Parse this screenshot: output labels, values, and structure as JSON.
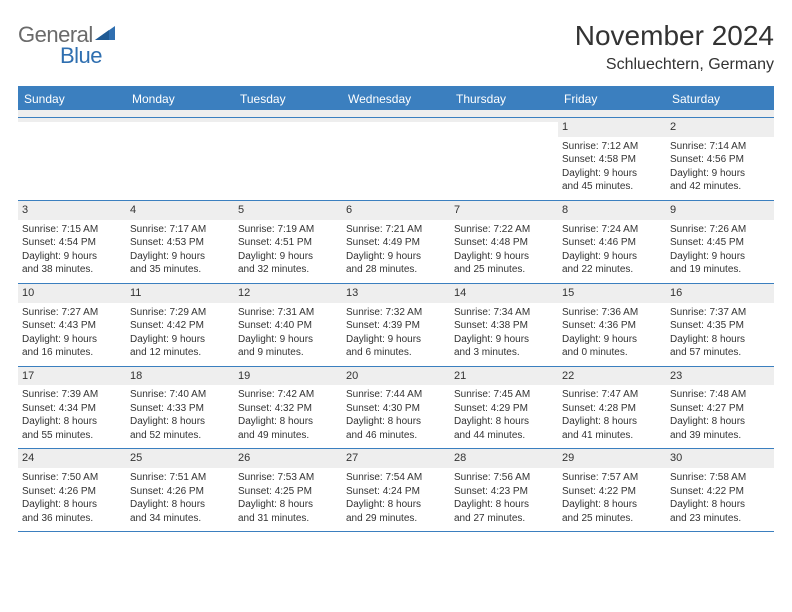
{
  "logo": {
    "general": "General",
    "blue": "Blue"
  },
  "title": "November 2024",
  "location": "Schluechtern, Germany",
  "colors": {
    "header_bar": "#3b7fbf",
    "daynum_bg": "#eeeeee",
    "text": "#333333",
    "logo_gray": "#6a6a6a",
    "logo_blue": "#2f6fb0"
  },
  "dayNames": [
    "Sunday",
    "Monday",
    "Tuesday",
    "Wednesday",
    "Thursday",
    "Friday",
    "Saturday"
  ],
  "weeks": [
    [
      {
        "n": "",
        "sunrise": "",
        "sunset": "",
        "day1": "",
        "day2": ""
      },
      {
        "n": "",
        "sunrise": "",
        "sunset": "",
        "day1": "",
        "day2": ""
      },
      {
        "n": "",
        "sunrise": "",
        "sunset": "",
        "day1": "",
        "day2": ""
      },
      {
        "n": "",
        "sunrise": "",
        "sunset": "",
        "day1": "",
        "day2": ""
      },
      {
        "n": "",
        "sunrise": "",
        "sunset": "",
        "day1": "",
        "day2": ""
      },
      {
        "n": "1",
        "sunrise": "Sunrise: 7:12 AM",
        "sunset": "Sunset: 4:58 PM",
        "day1": "Daylight: 9 hours",
        "day2": "and 45 minutes."
      },
      {
        "n": "2",
        "sunrise": "Sunrise: 7:14 AM",
        "sunset": "Sunset: 4:56 PM",
        "day1": "Daylight: 9 hours",
        "day2": "and 42 minutes."
      }
    ],
    [
      {
        "n": "3",
        "sunrise": "Sunrise: 7:15 AM",
        "sunset": "Sunset: 4:54 PM",
        "day1": "Daylight: 9 hours",
        "day2": "and 38 minutes."
      },
      {
        "n": "4",
        "sunrise": "Sunrise: 7:17 AM",
        "sunset": "Sunset: 4:53 PM",
        "day1": "Daylight: 9 hours",
        "day2": "and 35 minutes."
      },
      {
        "n": "5",
        "sunrise": "Sunrise: 7:19 AM",
        "sunset": "Sunset: 4:51 PM",
        "day1": "Daylight: 9 hours",
        "day2": "and 32 minutes."
      },
      {
        "n": "6",
        "sunrise": "Sunrise: 7:21 AM",
        "sunset": "Sunset: 4:49 PM",
        "day1": "Daylight: 9 hours",
        "day2": "and 28 minutes."
      },
      {
        "n": "7",
        "sunrise": "Sunrise: 7:22 AM",
        "sunset": "Sunset: 4:48 PM",
        "day1": "Daylight: 9 hours",
        "day2": "and 25 minutes."
      },
      {
        "n": "8",
        "sunrise": "Sunrise: 7:24 AM",
        "sunset": "Sunset: 4:46 PM",
        "day1": "Daylight: 9 hours",
        "day2": "and 22 minutes."
      },
      {
        "n": "9",
        "sunrise": "Sunrise: 7:26 AM",
        "sunset": "Sunset: 4:45 PM",
        "day1": "Daylight: 9 hours",
        "day2": "and 19 minutes."
      }
    ],
    [
      {
        "n": "10",
        "sunrise": "Sunrise: 7:27 AM",
        "sunset": "Sunset: 4:43 PM",
        "day1": "Daylight: 9 hours",
        "day2": "and 16 minutes."
      },
      {
        "n": "11",
        "sunrise": "Sunrise: 7:29 AM",
        "sunset": "Sunset: 4:42 PM",
        "day1": "Daylight: 9 hours",
        "day2": "and 12 minutes."
      },
      {
        "n": "12",
        "sunrise": "Sunrise: 7:31 AM",
        "sunset": "Sunset: 4:40 PM",
        "day1": "Daylight: 9 hours",
        "day2": "and 9 minutes."
      },
      {
        "n": "13",
        "sunrise": "Sunrise: 7:32 AM",
        "sunset": "Sunset: 4:39 PM",
        "day1": "Daylight: 9 hours",
        "day2": "and 6 minutes."
      },
      {
        "n": "14",
        "sunrise": "Sunrise: 7:34 AM",
        "sunset": "Sunset: 4:38 PM",
        "day1": "Daylight: 9 hours",
        "day2": "and 3 minutes."
      },
      {
        "n": "15",
        "sunrise": "Sunrise: 7:36 AM",
        "sunset": "Sunset: 4:36 PM",
        "day1": "Daylight: 9 hours",
        "day2": "and 0 minutes."
      },
      {
        "n": "16",
        "sunrise": "Sunrise: 7:37 AM",
        "sunset": "Sunset: 4:35 PM",
        "day1": "Daylight: 8 hours",
        "day2": "and 57 minutes."
      }
    ],
    [
      {
        "n": "17",
        "sunrise": "Sunrise: 7:39 AM",
        "sunset": "Sunset: 4:34 PM",
        "day1": "Daylight: 8 hours",
        "day2": "and 55 minutes."
      },
      {
        "n": "18",
        "sunrise": "Sunrise: 7:40 AM",
        "sunset": "Sunset: 4:33 PM",
        "day1": "Daylight: 8 hours",
        "day2": "and 52 minutes."
      },
      {
        "n": "19",
        "sunrise": "Sunrise: 7:42 AM",
        "sunset": "Sunset: 4:32 PM",
        "day1": "Daylight: 8 hours",
        "day2": "and 49 minutes."
      },
      {
        "n": "20",
        "sunrise": "Sunrise: 7:44 AM",
        "sunset": "Sunset: 4:30 PM",
        "day1": "Daylight: 8 hours",
        "day2": "and 46 minutes."
      },
      {
        "n": "21",
        "sunrise": "Sunrise: 7:45 AM",
        "sunset": "Sunset: 4:29 PM",
        "day1": "Daylight: 8 hours",
        "day2": "and 44 minutes."
      },
      {
        "n": "22",
        "sunrise": "Sunrise: 7:47 AM",
        "sunset": "Sunset: 4:28 PM",
        "day1": "Daylight: 8 hours",
        "day2": "and 41 minutes."
      },
      {
        "n": "23",
        "sunrise": "Sunrise: 7:48 AM",
        "sunset": "Sunset: 4:27 PM",
        "day1": "Daylight: 8 hours",
        "day2": "and 39 minutes."
      }
    ],
    [
      {
        "n": "24",
        "sunrise": "Sunrise: 7:50 AM",
        "sunset": "Sunset: 4:26 PM",
        "day1": "Daylight: 8 hours",
        "day2": "and 36 minutes."
      },
      {
        "n": "25",
        "sunrise": "Sunrise: 7:51 AM",
        "sunset": "Sunset: 4:26 PM",
        "day1": "Daylight: 8 hours",
        "day2": "and 34 minutes."
      },
      {
        "n": "26",
        "sunrise": "Sunrise: 7:53 AM",
        "sunset": "Sunset: 4:25 PM",
        "day1": "Daylight: 8 hours",
        "day2": "and 31 minutes."
      },
      {
        "n": "27",
        "sunrise": "Sunrise: 7:54 AM",
        "sunset": "Sunset: 4:24 PM",
        "day1": "Daylight: 8 hours",
        "day2": "and 29 minutes."
      },
      {
        "n": "28",
        "sunrise": "Sunrise: 7:56 AM",
        "sunset": "Sunset: 4:23 PM",
        "day1": "Daylight: 8 hours",
        "day2": "and 27 minutes."
      },
      {
        "n": "29",
        "sunrise": "Sunrise: 7:57 AM",
        "sunset": "Sunset: 4:22 PM",
        "day1": "Daylight: 8 hours",
        "day2": "and 25 minutes."
      },
      {
        "n": "30",
        "sunrise": "Sunrise: 7:58 AM",
        "sunset": "Sunset: 4:22 PM",
        "day1": "Daylight: 8 hours",
        "day2": "and 23 minutes."
      }
    ]
  ]
}
